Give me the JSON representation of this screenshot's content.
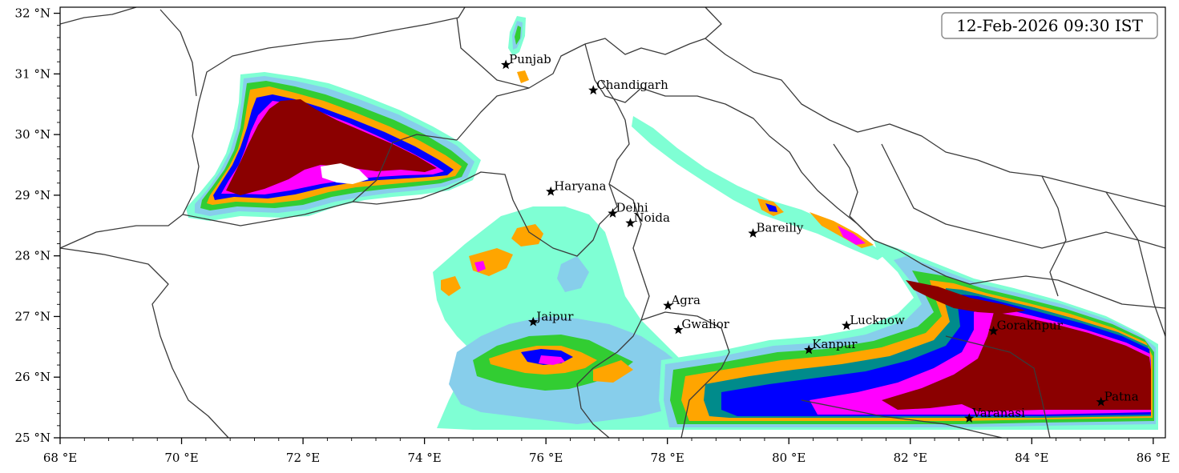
{
  "map": {
    "timestamp": "12-Feb-2026 09:30 IST",
    "extent": {
      "lon_min": 68,
      "lon_max": 86.2,
      "lat_min": 25,
      "lat_max": 32.1
    },
    "x_ticks": [
      {
        "lon": 68,
        "label": "68 °E"
      },
      {
        "lon": 70,
        "label": "70 °E"
      },
      {
        "lon": 72,
        "label": "72 °E"
      },
      {
        "lon": 74,
        "label": "74 °E"
      },
      {
        "lon": 76,
        "label": "76 °E"
      },
      {
        "lon": 78,
        "label": "78 °E"
      },
      {
        "lon": 80,
        "label": "80 °E"
      },
      {
        "lon": 82,
        "label": "82 °E"
      },
      {
        "lon": 84,
        "label": "84 °E"
      },
      {
        "lon": 86,
        "label": "86 °E"
      }
    ],
    "y_ticks": [
      {
        "lat": 25,
        "label": "25 °N"
      },
      {
        "lat": 26,
        "label": "26 °N"
      },
      {
        "lat": 27,
        "label": "27 °N"
      },
      {
        "lat": 28,
        "label": "28 °N"
      },
      {
        "lat": 29,
        "label": "29 °N"
      },
      {
        "lat": 30,
        "label": "30 °N"
      },
      {
        "lat": 31,
        "label": "31 °N"
      },
      {
        "lat": 32,
        "label": "32 °N"
      }
    ],
    "cities": [
      {
        "name": "Punjab",
        "lon": 75.34,
        "lat": 31.15
      },
      {
        "name": "Chandigarh",
        "lon": 76.78,
        "lat": 30.73
      },
      {
        "name": "Haryana",
        "lon": 76.08,
        "lat": 29.06
      },
      {
        "name": "Delhi",
        "lon": 77.1,
        "lat": 28.7
      },
      {
        "name": "Noida",
        "lon": 77.39,
        "lat": 28.54
      },
      {
        "name": "Bareilly",
        "lon": 79.41,
        "lat": 28.37
      },
      {
        "name": "Agra",
        "lon": 78.01,
        "lat": 27.18
      },
      {
        "name": "Jaipur",
        "lon": 75.79,
        "lat": 26.91
      },
      {
        "name": "Gwalior",
        "lon": 78.18,
        "lat": 26.78
      },
      {
        "name": "Lucknow",
        "lon": 80.95,
        "lat": 26.85
      },
      {
        "name": "Kanpur",
        "lon": 80.33,
        "lat": 26.45
      },
      {
        "name": "Gorakhpur",
        "lon": 83.37,
        "lat": 26.76
      },
      {
        "name": "Varanasi",
        "lon": 82.97,
        "lat": 25.32
      },
      {
        "name": "Patna",
        "lon": 85.14,
        "lat": 25.59
      }
    ],
    "contour_colors": [
      "#7fffd4",
      "#87ceeb",
      "#32cd32",
      "#ffa500",
      "#ffd700",
      "#008b8b",
      "#0000ff",
      "#ff00ff",
      "#8b0000"
    ]
  }
}
